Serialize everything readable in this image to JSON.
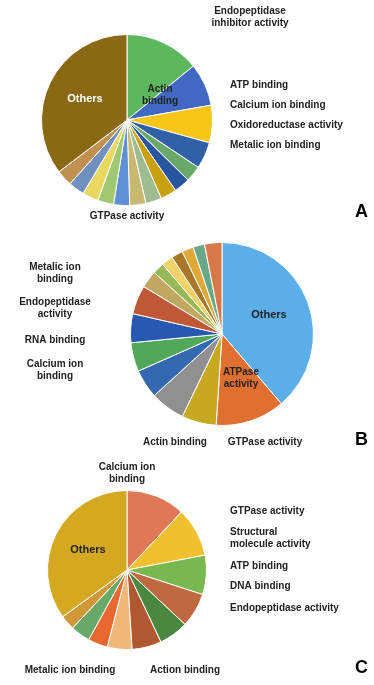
{
  "chart_data": [
    {
      "type": "pie",
      "values": [
        14,
        8,
        7,
        5,
        3,
        3,
        3,
        3,
        3,
        3,
        3,
        3,
        3,
        3,
        35
      ],
      "colors": [
        "#5cb85c",
        "#4169c4",
        "#f5c518",
        "#3060a8",
        "#68a868",
        "#2855a0",
        "#c8a010",
        "#9fbc90",
        "#c8b870",
        "#6090d4",
        "#a0c870",
        "#e8d860",
        "#7090c0",
        "#c09050",
        "#8B6914"
      ],
      "annotations": [
        "Others",
        "Actin\nbinding",
        "Endopeptidase\ninhibitor activity",
        "ATP binding",
        "Calcium ion binding",
        "Oxidoreductase activity",
        "Metalic ion binding",
        "GTPase activity",
        "A"
      ]
    },
    {
      "type": "pie",
      "values": [
        38,
        12,
        6,
        6,
        5,
        5,
        5,
        5,
        3,
        2,
        2,
        2,
        2,
        2,
        3
      ],
      "colors": [
        "#5baee8",
        "#e07030",
        "#c8a820",
        "#909090",
        "#3468b0",
        "#50a858",
        "#2858b0",
        "#c05838",
        "#c0a860",
        "#98b858",
        "#f0d068",
        "#a87828",
        "#e0a838",
        "#68a888",
        "#d87848"
      ],
      "annotations": [
        "Others",
        "ATPase\nactivity",
        "Metalic ion\nbinding",
        "Endopeptidase\nactivity",
        "RNA binding",
        "Calcium ion\nbinding",
        "Actin binding",
        "GTPase activity",
        "B"
      ]
    },
    {
      "type": "pie",
      "values": [
        12,
        10,
        8,
        7,
        6,
        6,
        5,
        4,
        4,
        3,
        35
      ],
      "colors": [
        "#e07858",
        "#f0c030",
        "#78b850",
        "#c06840",
        "#4a8840",
        "#b05830",
        "#f0b878",
        "#e86830",
        "#68a868",
        "#d09838",
        "#d4a820"
      ],
      "annotations": [
        "Others",
        "Calcium ion\nbinding",
        "GTPase activity",
        "Structural\nmolecule activity",
        "ATP binding",
        "DNA binding",
        "Endopeptidase activity",
        "Action binding",
        "Metalic ion binding",
        "C"
      ]
    }
  ]
}
